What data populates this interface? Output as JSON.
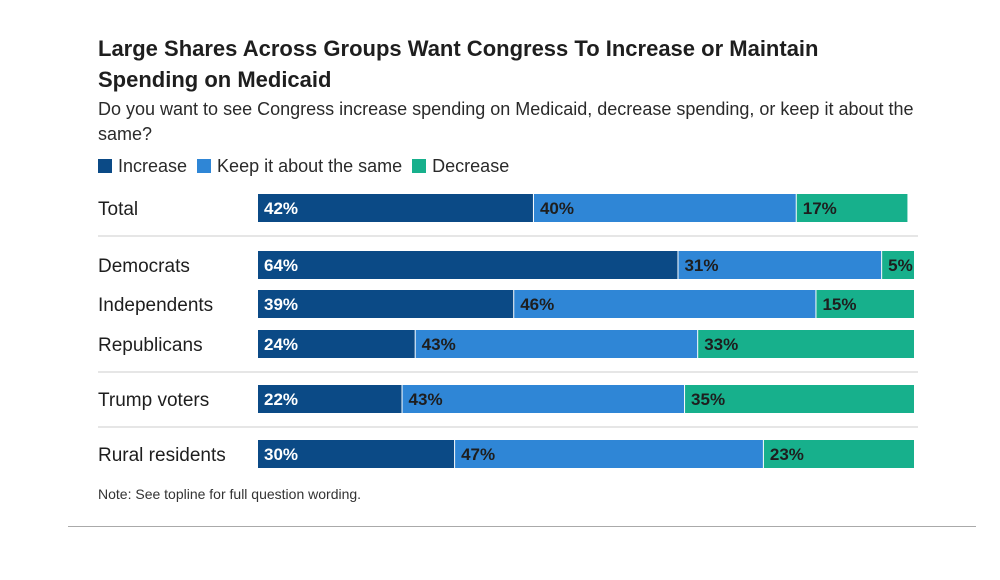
{
  "title": "Large Shares Across Groups Want Congress To Increase or Maintain Spending on Medicaid",
  "subtitle": "Do you want to see Congress increase spending on Medicaid, decrease spending, or keep it about the same?",
  "note": "Note: See topline for full question wording.",
  "colors": {
    "increase": "#0b4a86",
    "keep": "#2f86d6",
    "decrease": "#17b08c",
    "dark_text": "#ffffff",
    "light_text": "#1e1e1e"
  },
  "legend": [
    {
      "label": "Increase",
      "color": "#0b4a86"
    },
    {
      "label": "Keep it about the same",
      "color": "#2f86d6"
    },
    {
      "label": "Decrease",
      "color": "#17b08c"
    }
  ],
  "chart_data": {
    "type": "bar",
    "orientation": "horizontal",
    "stacked": true,
    "title": "Large Shares Across Groups Want Congress To Increase or Maintain Spending on Medicaid",
    "subtitle": "Do you want to see Congress increase spending on Medicaid, decrease spending, or keep it about the same?",
    "categories": [
      "Total",
      "Democrats",
      "Independents",
      "Republicans",
      "Trump voters",
      "Rural residents"
    ],
    "groups_separated_after": [
      "Total",
      "Republicans",
      "Trump voters"
    ],
    "series": [
      {
        "name": "Increase",
        "values": [
          42,
          64,
          39,
          24,
          22,
          30
        ],
        "labels": [
          "42%",
          "64%",
          "39%",
          "24%",
          "22%",
          "30%"
        ]
      },
      {
        "name": "Keep it about the same",
        "values": [
          40,
          31,
          46,
          43,
          43,
          47
        ],
        "labels": [
          "40%",
          "31%",
          "46%",
          "43%",
          "43%",
          "47%"
        ]
      },
      {
        "name": "Decrease",
        "values": [
          17,
          5,
          15,
          33,
          35,
          23
        ],
        "labels": [
          "17%",
          "5%",
          "15%",
          "33%",
          "35%",
          "23%"
        ]
      }
    ],
    "xlim": [
      0,
      100
    ],
    "legend_position": "top-left",
    "grid": false
  }
}
